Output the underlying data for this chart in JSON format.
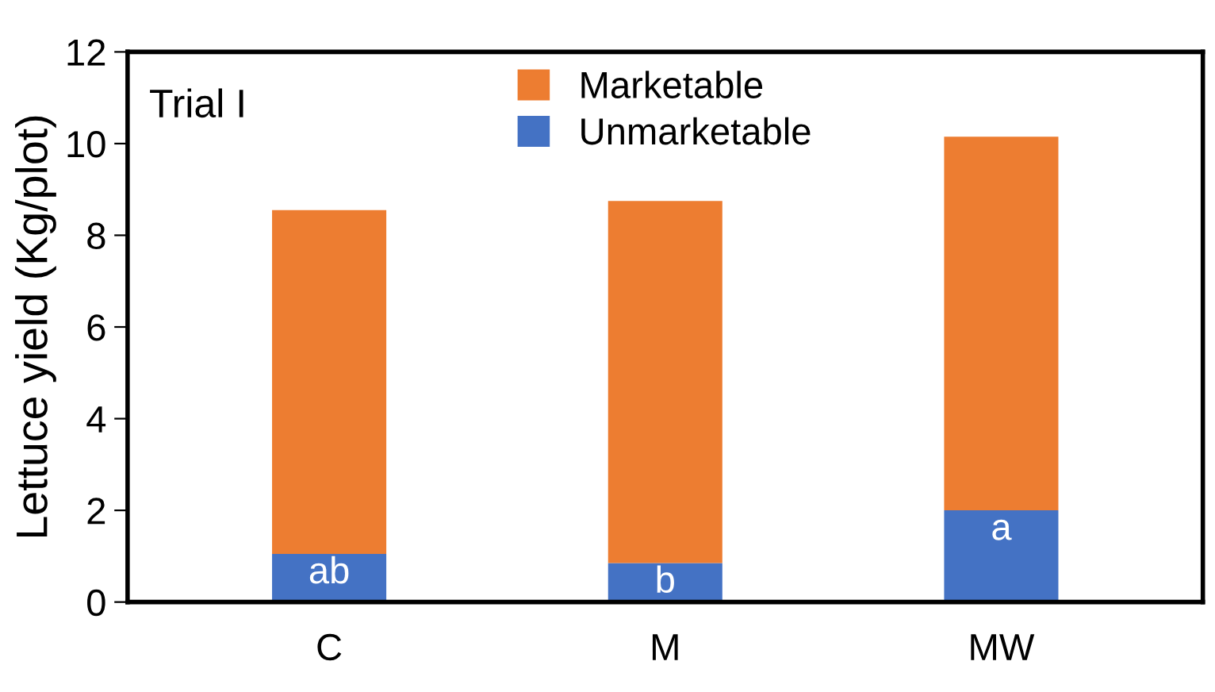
{
  "chart_data": {
    "type": "bar",
    "stacked": true,
    "ylabel": "Lettuce yield (Kg/plot)",
    "categories": [
      "C",
      "M",
      "MW"
    ],
    "series": [
      {
        "name": "Unmarketable",
        "color": "#4472c4",
        "values": [
          1.05,
          0.85,
          2.0
        ]
      },
      {
        "name": "Marketable",
        "color": "#ed7d31",
        "values": [
          7.5,
          7.9,
          8.15
        ]
      }
    ],
    "ylim": [
      0,
      12
    ],
    "yticks": [
      0,
      2,
      4,
      6,
      8,
      10,
      12
    ],
    "grid": false,
    "legend": "top",
    "annotations": [
      "Trial I",
      "ab",
      "b",
      "a"
    ]
  }
}
